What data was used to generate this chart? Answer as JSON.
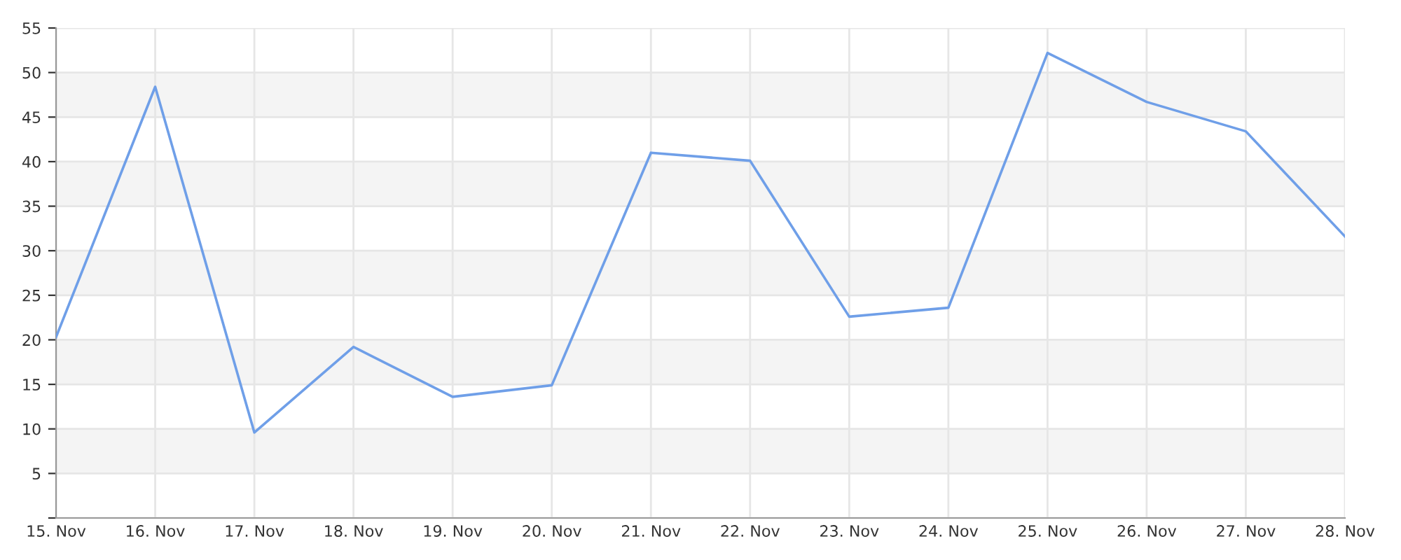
{
  "chart_data": {
    "type": "line",
    "categories": [
      "15. Nov",
      "16. Nov",
      "17. Nov",
      "18. Nov",
      "19. Nov",
      "20. Nov",
      "21. Nov",
      "22. Nov",
      "23. Nov",
      "24. Nov",
      "25. Nov",
      "26. Nov",
      "27. Nov",
      "28. Nov"
    ],
    "series": [
      {
        "color": "#6f9fe8",
        "values": [
          20.3,
          48.4,
          9.6,
          19.2,
          13.6,
          14.9,
          41.0,
          40.1,
          22.6,
          23.6,
          52.2,
          46.7,
          43.4,
          31.6
        ]
      }
    ],
    "ylim": [
      0,
      55
    ],
    "yticks": [
      {
        "value": 0,
        "label": null
      },
      5,
      10,
      15,
      20,
      25,
      30,
      35,
      40,
      45,
      50,
      55
    ],
    "bands": [
      {
        "axis": "y",
        "from": 5,
        "to": 10,
        "color": "#f4f4f4"
      },
      {
        "axis": "y",
        "from": 15,
        "to": 20,
        "color": "#f4f4f4"
      },
      {
        "axis": "y",
        "from": 25,
        "to": 30,
        "color": "#f4f4f4"
      },
      {
        "axis": "y",
        "from": 35,
        "to": 40,
        "color": "#f4f4f4"
      },
      {
        "axis": "y",
        "from": 45,
        "to": 50,
        "color": "#f4f4f4"
      }
    ],
    "grid": true,
    "marker": "none",
    "line_style": "solid",
    "legend": false
  }
}
